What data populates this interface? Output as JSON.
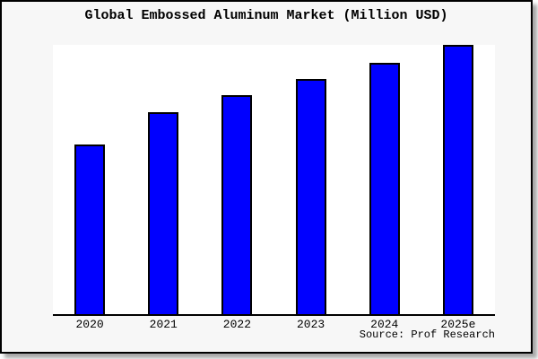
{
  "chart_data": {
    "type": "bar",
    "title": "Global Embossed Aluminum Market (Million USD)",
    "categories": [
      "2020",
      "2021",
      "2022",
      "2023",
      "2024",
      "2025e"
    ],
    "values": [
      63,
      75,
      81.5,
      87.5,
      93.5,
      100
    ],
    "values_note": "y-axis has no ticks or labels; values are relative estimates read from bar heights with 2025e normalized to 100",
    "xlabel": "",
    "ylabel": "",
    "ylim": [
      0,
      100
    ],
    "grid": false,
    "legend": false,
    "y_axis_visible": false,
    "annotation_source": "Source: Prof Research",
    "colors": {
      "bar_fill": "#0000ff",
      "bar_edge": "#000000",
      "plot_background": "#ffffff",
      "figure_background": "#f7f7f7",
      "axis_line": "#000000",
      "text": "#000000"
    }
  }
}
